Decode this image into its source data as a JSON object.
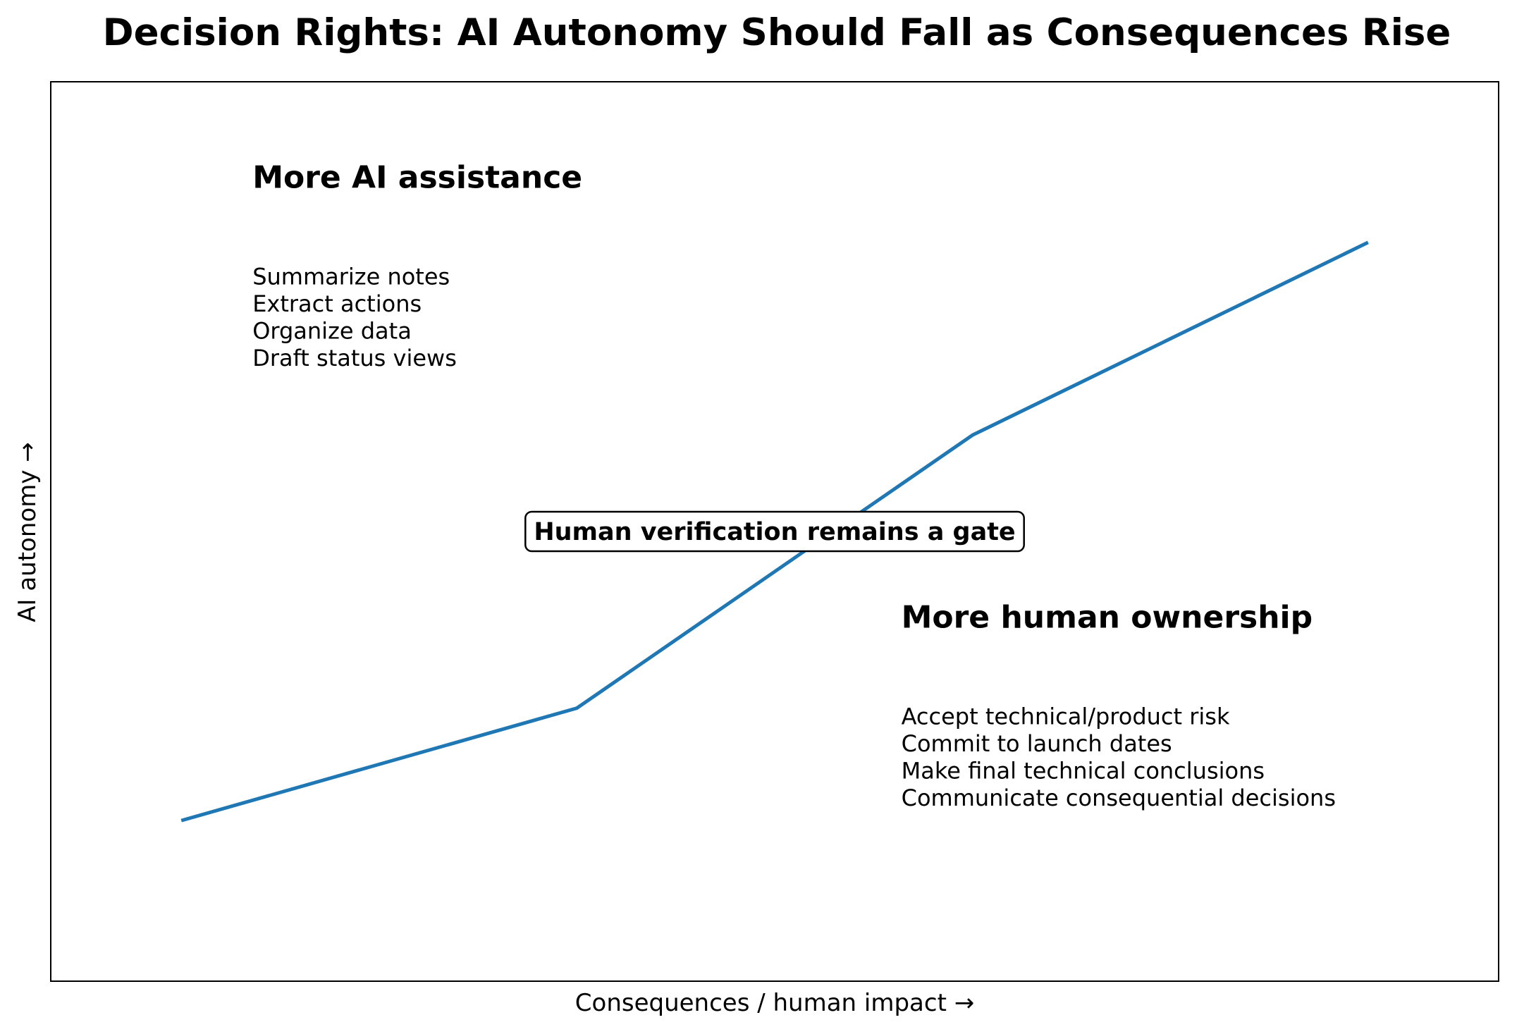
{
  "chart_data": {
    "type": "line",
    "title": "Decision Rights: AI Autonomy Should Fall as Consequences Rise",
    "xlabel": "Consequences / human impact →",
    "ylabel": "AI autonomy →",
    "x": [
      1,
      2,
      3,
      4
    ],
    "values": [
      1.0,
      1.35,
      2.2,
      2.8
    ],
    "xlim": [
      0.67,
      4.33
    ],
    "ylim": [
      0.5,
      3.3
    ],
    "series_color": "#1f77b4",
    "grid": false,
    "legend": "none",
    "regions": [
      {
        "heading": "More AI assistance",
        "items": [
          "Summarize notes",
          "Extract actions",
          "Organize data",
          "Draft status views"
        ],
        "anchor_x": 1.18,
        "anchor_y": 2.97
      },
      {
        "heading": "More human ownership",
        "items": [
          "Accept technical/product risk",
          "Commit to launch dates",
          "Make final technical conclusions",
          "Communicate consequential decisions"
        ],
        "anchor_x": 2.82,
        "anchor_y": 1.6
      }
    ],
    "callout": {
      "text": "Human verification remains a gate",
      "x": 2.5,
      "y": 1.9
    }
  }
}
